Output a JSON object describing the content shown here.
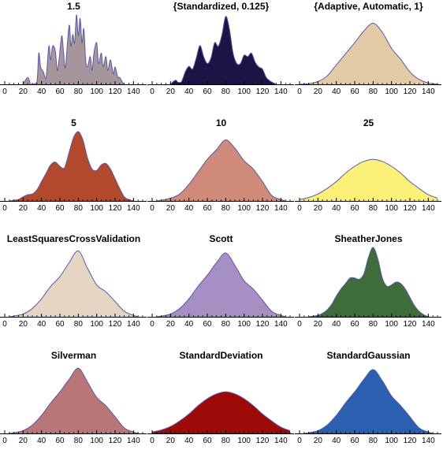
{
  "chart_data": [
    {
      "type": "area",
      "title": "1.5",
      "fill": "#a7959c",
      "x_ticks": [
        0,
        20,
        40,
        60,
        80,
        100,
        120,
        140
      ],
      "xlim": [
        0,
        150
      ],
      "x": [
        20,
        25,
        28,
        30,
        35,
        37,
        39,
        42,
        45,
        48,
        50,
        52,
        55,
        57,
        59,
        62,
        64,
        66,
        70,
        72,
        74,
        76,
        78,
        80,
        82,
        84,
        86,
        88,
        90,
        93,
        95,
        97,
        100,
        102,
        105,
        107,
        110,
        112,
        115,
        118,
        120,
        123,
        125,
        128,
        130
      ],
      "y": [
        0.0,
        0.1,
        0.0,
        0.0,
        0.03,
        0.45,
        0.25,
        0.18,
        0.1,
        0.55,
        0.35,
        0.55,
        0.48,
        0.2,
        0.35,
        0.7,
        0.45,
        0.25,
        0.85,
        0.55,
        0.72,
        0.6,
        1.0,
        0.7,
        0.95,
        0.6,
        0.8,
        0.35,
        0.25,
        0.4,
        0.2,
        0.45,
        0.6,
        0.3,
        0.45,
        0.25,
        0.4,
        0.2,
        0.35,
        0.15,
        0.25,
        0.1,
        0.1,
        0.03,
        0.0
      ]
    },
    {
      "type": "area",
      "title": "{Standardized, 0.125}",
      "fill": "#1d1446",
      "x_ticks": [
        0,
        20,
        40,
        60,
        80,
        100,
        120,
        140
      ],
      "xlim": [
        0,
        150
      ],
      "x": [
        20,
        23,
        26,
        28,
        32,
        36,
        40,
        44,
        48,
        52,
        56,
        60,
        64,
        68,
        72,
        76,
        80,
        84,
        88,
        92,
        96,
        100,
        104,
        108,
        112,
        116,
        120,
        124,
        128,
        132,
        135
      ],
      "y": [
        0.0,
        0.04,
        0.06,
        0.03,
        0.04,
        0.18,
        0.26,
        0.22,
        0.38,
        0.56,
        0.4,
        0.3,
        0.38,
        0.6,
        0.55,
        0.72,
        0.98,
        0.8,
        0.45,
        0.3,
        0.3,
        0.42,
        0.4,
        0.45,
        0.32,
        0.25,
        0.22,
        0.1,
        0.05,
        0.02,
        0.0
      ]
    },
    {
      "type": "area",
      "title": "{Adaptive, Automatic, 1}",
      "fill": "#e3cba8",
      "x_ticks": [
        0,
        20,
        40,
        60,
        80,
        100,
        120,
        140
      ],
      "xlim": [
        0,
        150
      ],
      "x": [
        0,
        10,
        20,
        30,
        40,
        50,
        60,
        70,
        80,
        90,
        100,
        110,
        120,
        130,
        140,
        150
      ],
      "y": [
        0.0,
        0.01,
        0.04,
        0.12,
        0.28,
        0.44,
        0.6,
        0.77,
        0.88,
        0.75,
        0.52,
        0.36,
        0.18,
        0.07,
        0.02,
        0.0
      ]
    },
    {
      "type": "area",
      "title": "5",
      "fill": "#b14a2c",
      "x_ticks": [
        0,
        20,
        40,
        60,
        80,
        100,
        120,
        140
      ],
      "xlim": [
        0,
        150
      ],
      "x": [
        5,
        10,
        15,
        20,
        25,
        30,
        35,
        40,
        45,
        50,
        55,
        60,
        65,
        70,
        75,
        80,
        85,
        90,
        95,
        100,
        105,
        110,
        115,
        120,
        125,
        130,
        135,
        140
      ],
      "y": [
        0.0,
        0.01,
        0.02,
        0.06,
        0.09,
        0.1,
        0.16,
        0.28,
        0.4,
        0.52,
        0.56,
        0.5,
        0.48,
        0.7,
        0.92,
        1.0,
        0.88,
        0.62,
        0.46,
        0.44,
        0.52,
        0.54,
        0.46,
        0.32,
        0.18,
        0.06,
        0.02,
        0.0
      ]
    },
    {
      "type": "area",
      "title": "10",
      "fill": "#cf8a79",
      "x_ticks": [
        0,
        20,
        40,
        60,
        80,
        100,
        120,
        140
      ],
      "xlim": [
        0,
        150
      ],
      "x": [
        5,
        10,
        20,
        30,
        40,
        50,
        60,
        70,
        80,
        90,
        100,
        110,
        120,
        130,
        140,
        145
      ],
      "y": [
        0.0,
        0.01,
        0.04,
        0.1,
        0.24,
        0.42,
        0.6,
        0.74,
        0.88,
        0.76,
        0.58,
        0.46,
        0.28,
        0.08,
        0.02,
        0.0
      ]
    },
    {
      "type": "area",
      "title": "25",
      "fill": "#fcf178",
      "x_ticks": [
        0,
        20,
        40,
        60,
        80,
        100,
        120,
        140
      ],
      "xlim": [
        0,
        150
      ],
      "x": [
        0,
        10,
        20,
        30,
        40,
        50,
        60,
        70,
        80,
        90,
        100,
        110,
        120,
        130,
        140,
        150
      ],
      "y": [
        0.02,
        0.05,
        0.1,
        0.18,
        0.28,
        0.4,
        0.5,
        0.57,
        0.6,
        0.57,
        0.5,
        0.4,
        0.28,
        0.18,
        0.09,
        0.04
      ]
    },
    {
      "type": "area",
      "title": "LeastSquaresCrossValidation",
      "fill": "#e5d6c3",
      "x_ticks": [
        0,
        20,
        40,
        60,
        80,
        100,
        120,
        140
      ],
      "xlim": [
        0,
        150
      ],
      "x": [
        5,
        10,
        20,
        30,
        40,
        50,
        60,
        70,
        80,
        90,
        100,
        110,
        120,
        130,
        140,
        145
      ],
      "y": [
        0.0,
        0.01,
        0.04,
        0.12,
        0.26,
        0.44,
        0.58,
        0.78,
        0.95,
        0.7,
        0.46,
        0.36,
        0.22,
        0.08,
        0.02,
        0.0
      ]
    },
    {
      "type": "area",
      "title": "Scott",
      "fill": "#a58fc3",
      "x_ticks": [
        0,
        20,
        40,
        60,
        80,
        100,
        120,
        140
      ],
      "xlim": [
        0,
        150
      ],
      "x": [
        5,
        10,
        20,
        30,
        40,
        50,
        60,
        70,
        80,
        90,
        100,
        110,
        120,
        130,
        140,
        145
      ],
      "y": [
        0.0,
        0.01,
        0.04,
        0.12,
        0.26,
        0.44,
        0.6,
        0.78,
        0.92,
        0.74,
        0.52,
        0.4,
        0.24,
        0.08,
        0.02,
        0.0
      ]
    },
    {
      "type": "area",
      "title": "SheatherJones",
      "fill": "#3f6d3a",
      "x_ticks": [
        0,
        20,
        40,
        60,
        80,
        100,
        120,
        140
      ],
      "xlim": [
        0,
        150
      ],
      "x": [
        10,
        15,
        20,
        25,
        30,
        35,
        40,
        45,
        50,
        55,
        60,
        65,
        70,
        75,
        80,
        85,
        90,
        95,
        100,
        105,
        110,
        115,
        120,
        125,
        130,
        135,
        140
      ],
      "y": [
        0.0,
        0.01,
        0.02,
        0.05,
        0.1,
        0.18,
        0.3,
        0.4,
        0.48,
        0.56,
        0.56,
        0.54,
        0.62,
        0.86,
        1.0,
        0.84,
        0.56,
        0.44,
        0.46,
        0.5,
        0.48,
        0.4,
        0.28,
        0.16,
        0.08,
        0.03,
        0.0
      ]
    },
    {
      "type": "area",
      "title": "Silverman",
      "fill": "#b87676",
      "x_ticks": [
        0,
        20,
        40,
        60,
        80,
        100,
        120,
        140
      ],
      "xlim": [
        0,
        150
      ],
      "x": [
        5,
        10,
        20,
        30,
        40,
        50,
        60,
        70,
        80,
        90,
        100,
        110,
        120,
        130,
        140,
        145
      ],
      "y": [
        0.0,
        0.01,
        0.04,
        0.12,
        0.26,
        0.44,
        0.6,
        0.78,
        0.94,
        0.74,
        0.52,
        0.4,
        0.24,
        0.08,
        0.02,
        0.0
      ]
    },
    {
      "type": "area",
      "title": "StandardDeviation",
      "fill": "#9d0b09",
      "x_ticks": [
        0,
        20,
        40,
        60,
        80,
        100,
        120,
        140
      ],
      "xlim": [
        0,
        150
      ],
      "x": [
        0,
        10,
        20,
        30,
        40,
        50,
        60,
        70,
        80,
        90,
        100,
        110,
        120,
        130,
        140,
        150
      ],
      "y": [
        0.02,
        0.05,
        0.1,
        0.18,
        0.28,
        0.4,
        0.5,
        0.57,
        0.6,
        0.57,
        0.5,
        0.4,
        0.28,
        0.18,
        0.09,
        0.04
      ]
    },
    {
      "type": "area",
      "title": "StandardGaussian",
      "fill": "#2b5fb0",
      "x_ticks": [
        0,
        20,
        40,
        60,
        80,
        100,
        120,
        140
      ],
      "xlim": [
        0,
        150
      ],
      "x": [
        5,
        10,
        20,
        30,
        40,
        50,
        60,
        70,
        80,
        90,
        100,
        110,
        120,
        130,
        140,
        145
      ],
      "y": [
        0.0,
        0.01,
        0.04,
        0.12,
        0.26,
        0.44,
        0.6,
        0.78,
        0.92,
        0.76,
        0.54,
        0.4,
        0.24,
        0.08,
        0.02,
        0.0
      ]
    }
  ]
}
